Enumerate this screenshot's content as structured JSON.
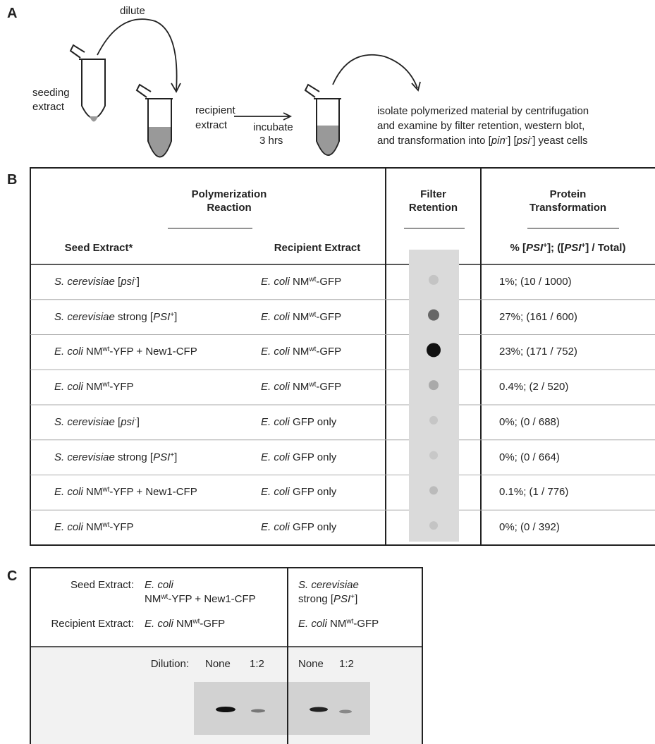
{
  "panel_a": {
    "label": "A",
    "dilute": "dilute",
    "seeding": [
      "seeding",
      "extract"
    ],
    "recipient": [
      "recipient",
      "extract"
    ],
    "incubate": [
      "incubate",
      "3 hrs"
    ],
    "description": [
      [
        "isolate polymerized material by centrifugation"
      ],
      [
        "and examine by filter retention, western blot,"
      ],
      [
        "and transformation into [",
        "pin",
        "-",
        "] [",
        "psi",
        "-",
        "] yeast cells"
      ]
    ]
  },
  "panel_b": {
    "label": "B",
    "headers": {
      "polymerization": [
        "Polymerization",
        "Reaction"
      ],
      "seed": "Seed Extract*",
      "recipient": "Recipient Extract",
      "filter": [
        "Filter",
        "Retention"
      ],
      "protein": [
        "Protein",
        "Transformation"
      ],
      "protein_sub": [
        "% [",
        "PSI",
        "+",
        "]; ([",
        "PSI",
        "+",
        "] / Total)"
      ]
    },
    "rows": [
      {
        "seed": [
          "S. cerevisiae",
          " [",
          "psi",
          "-",
          "]"
        ],
        "recipient": [
          "E. coli",
          " NM",
          "wt",
          "-GFP"
        ],
        "transformation": "1%; (10 / 1000)"
      },
      {
        "seed": [
          "S. cerevisiae",
          " strong [",
          "PSI",
          "+",
          "]"
        ],
        "recipient": [
          "E. coli",
          " NM",
          "wt",
          "-GFP"
        ],
        "transformation": "27%; (161 / 600)"
      },
      {
        "seed": [
          "E. coli",
          " NM",
          "wt",
          "-YFP + New1-CFP"
        ],
        "recipient": [
          "E. coli",
          " NM",
          "wt",
          "-GFP"
        ],
        "transformation": "23%; (171 / 752)"
      },
      {
        "seed": [
          "E. coli",
          " NM",
          "wt",
          "-YFP"
        ],
        "recipient": [
          "E. coli",
          " NM",
          "wt",
          "-GFP"
        ],
        "transformation": "0.4%; (2 / 520)"
      },
      {
        "seed": [
          "S. cerevisiae",
          " [",
          "psi",
          "-",
          "]"
        ],
        "recipient": [
          "E. coli",
          " GFP only"
        ],
        "transformation": "0%; (0 / 688)"
      },
      {
        "seed": [
          "S. cerevisiae",
          " strong [",
          "PSI",
          "+",
          "]"
        ],
        "recipient": [
          "E. coli",
          " GFP only"
        ],
        "transformation": "0%; (0 / 664)"
      },
      {
        "seed": [
          "E. coli",
          " NM",
          "wt",
          "-YFP + New1-CFP"
        ],
        "recipient": [
          "E. coli",
          " GFP only"
        ],
        "transformation": "0.1%; (1 / 776)"
      },
      {
        "seed": [
          "E. coli",
          " NM",
          "wt",
          "-YFP"
        ],
        "recipient": [
          "E. coli",
          " GFP only"
        ],
        "transformation": "0%; (0 / 392)"
      }
    ]
  },
  "panel_c": {
    "label": "C",
    "seed_label": "Seed Extract:",
    "recipient_label": "Recipient Extract:",
    "col1_seed": [
      [
        "E. coli"
      ],
      [
        "NM",
        "wt",
        "-YFP + New1-CFP"
      ]
    ],
    "col1_recipient": [
      "E. coli",
      " NM",
      "wt",
      "-GFP"
    ],
    "col2_seed": [
      [
        "S. cerevisiae"
      ],
      [
        "strong [",
        "PSI",
        "+",
        "]"
      ]
    ],
    "col2_recipient": [
      "E. coli",
      " NM",
      "wt",
      "-GFP"
    ],
    "dilution_label": "Dilution:",
    "dilutions": [
      "None",
      "1:2",
      "None",
      "1:2"
    ]
  }
}
